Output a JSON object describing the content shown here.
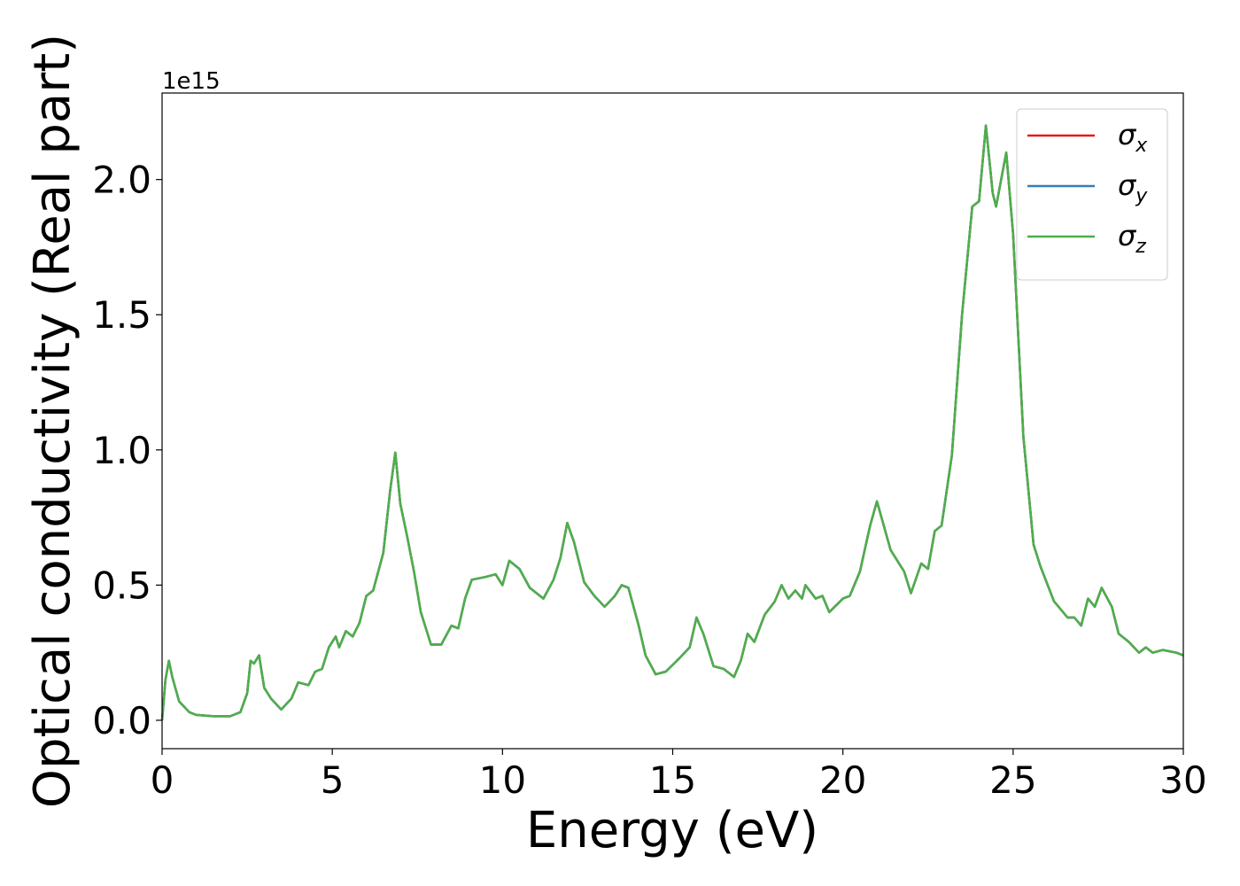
{
  "chart_data": {
    "type": "line",
    "xlabel": "Energy (eV)",
    "ylabel": "Optical conductivity (Real part)",
    "y_offset_label": "1e15",
    "x": [
      0,
      0.1,
      0.2,
      0.3,
      0.5,
      0.8,
      1.0,
      1.5,
      2.0,
      2.3,
      2.5,
      2.6,
      2.7,
      2.85,
      3.0,
      3.2,
      3.5,
      3.8,
      4.0,
      4.3,
      4.5,
      4.7,
      4.9,
      5.1,
      5.2,
      5.4,
      5.6,
      5.8,
      6.0,
      6.2,
      6.5,
      6.7,
      6.85,
      7.0,
      7.2,
      7.4,
      7.6,
      7.9,
      8.2,
      8.5,
      8.7,
      8.9,
      9.1,
      9.5,
      9.8,
      10.0,
      10.2,
      10.5,
      10.8,
      11.2,
      11.5,
      11.7,
      11.9,
      12.1,
      12.4,
      12.7,
      13.0,
      13.3,
      13.5,
      13.7,
      14.0,
      14.2,
      14.5,
      14.8,
      15.2,
      15.5,
      15.7,
      15.9,
      16.2,
      16.5,
      16.8,
      17.0,
      17.2,
      17.4,
      17.7,
      18.0,
      18.2,
      18.4,
      18.6,
      18.8,
      18.9,
      19.2,
      19.4,
      19.6,
      20.0,
      20.2,
      20.5,
      20.8,
      21.0,
      21.2,
      21.4,
      21.8,
      22.0,
      22.3,
      22.5,
      22.7,
      22.9,
      23.2,
      23.5,
      23.8,
      24.0,
      24.2,
      24.4,
      24.5,
      24.8,
      25.0,
      25.3,
      25.6,
      25.8,
      26.2,
      26.6,
      26.8,
      27.0,
      27.2,
      27.4,
      27.6,
      27.9,
      28.1,
      28.4,
      28.7,
      28.9,
      29.1,
      29.4,
      29.8,
      30.0
    ],
    "series": [
      {
        "name": "σx",
        "color": "#e41a1c",
        "values": [
          0.0,
          0.15,
          0.22,
          0.16,
          0.07,
          0.03,
          0.02,
          0.015,
          0.015,
          0.03,
          0.1,
          0.22,
          0.21,
          0.24,
          0.12,
          0.08,
          0.04,
          0.08,
          0.14,
          0.13,
          0.18,
          0.19,
          0.27,
          0.31,
          0.27,
          0.33,
          0.31,
          0.36,
          0.46,
          0.48,
          0.62,
          0.85,
          0.99,
          0.8,
          0.68,
          0.55,
          0.4,
          0.28,
          0.28,
          0.35,
          0.34,
          0.45,
          0.52,
          0.53,
          0.54,
          0.5,
          0.59,
          0.56,
          0.49,
          0.45,
          0.52,
          0.6,
          0.73,
          0.66,
          0.51,
          0.46,
          0.42,
          0.46,
          0.5,
          0.49,
          0.35,
          0.24,
          0.17,
          0.18,
          0.23,
          0.27,
          0.38,
          0.32,
          0.2,
          0.19,
          0.16,
          0.22,
          0.32,
          0.29,
          0.39,
          0.44,
          0.5,
          0.45,
          0.48,
          0.45,
          0.5,
          0.45,
          0.46,
          0.4,
          0.45,
          0.46,
          0.55,
          0.72,
          0.81,
          0.72,
          0.63,
          0.55,
          0.47,
          0.58,
          0.56,
          0.7,
          0.72,
          0.98,
          1.5,
          1.9,
          1.92,
          2.2,
          1.95,
          1.9,
          2.1,
          1.8,
          1.05,
          0.65,
          0.57,
          0.44,
          0.38,
          0.38,
          0.35,
          0.45,
          0.42,
          0.49,
          0.42,
          0.32,
          0.29,
          0.25,
          0.27,
          0.25,
          0.26,
          0.25,
          0.24
        ]
      },
      {
        "name": "σy",
        "color": "#377eb8",
        "values": [
          0.0,
          0.15,
          0.22,
          0.16,
          0.07,
          0.03,
          0.02,
          0.015,
          0.015,
          0.03,
          0.1,
          0.22,
          0.21,
          0.24,
          0.12,
          0.08,
          0.04,
          0.08,
          0.14,
          0.13,
          0.18,
          0.19,
          0.27,
          0.31,
          0.27,
          0.33,
          0.31,
          0.36,
          0.46,
          0.48,
          0.62,
          0.85,
          0.99,
          0.8,
          0.68,
          0.55,
          0.4,
          0.28,
          0.28,
          0.35,
          0.34,
          0.45,
          0.52,
          0.53,
          0.54,
          0.5,
          0.59,
          0.56,
          0.49,
          0.45,
          0.52,
          0.6,
          0.73,
          0.66,
          0.51,
          0.46,
          0.42,
          0.46,
          0.5,
          0.49,
          0.35,
          0.24,
          0.17,
          0.18,
          0.23,
          0.27,
          0.38,
          0.32,
          0.2,
          0.19,
          0.16,
          0.22,
          0.32,
          0.29,
          0.39,
          0.44,
          0.5,
          0.45,
          0.48,
          0.45,
          0.5,
          0.45,
          0.46,
          0.4,
          0.45,
          0.46,
          0.55,
          0.72,
          0.81,
          0.72,
          0.63,
          0.55,
          0.47,
          0.58,
          0.56,
          0.7,
          0.72,
          0.98,
          1.5,
          1.9,
          1.92,
          2.2,
          1.95,
          1.9,
          2.1,
          1.8,
          1.05,
          0.65,
          0.57,
          0.44,
          0.38,
          0.38,
          0.35,
          0.45,
          0.42,
          0.49,
          0.42,
          0.32,
          0.29,
          0.25,
          0.27,
          0.25,
          0.26,
          0.25,
          0.24
        ]
      },
      {
        "name": "σz",
        "color": "#4daf4a",
        "values": [
          0.0,
          0.15,
          0.22,
          0.16,
          0.07,
          0.03,
          0.02,
          0.015,
          0.015,
          0.03,
          0.1,
          0.22,
          0.21,
          0.24,
          0.12,
          0.08,
          0.04,
          0.08,
          0.14,
          0.13,
          0.18,
          0.19,
          0.27,
          0.31,
          0.27,
          0.33,
          0.31,
          0.36,
          0.46,
          0.48,
          0.62,
          0.85,
          0.99,
          0.8,
          0.68,
          0.55,
          0.4,
          0.28,
          0.28,
          0.35,
          0.34,
          0.45,
          0.52,
          0.53,
          0.54,
          0.5,
          0.59,
          0.56,
          0.49,
          0.45,
          0.52,
          0.6,
          0.73,
          0.66,
          0.51,
          0.46,
          0.42,
          0.46,
          0.5,
          0.49,
          0.35,
          0.24,
          0.17,
          0.18,
          0.23,
          0.27,
          0.38,
          0.32,
          0.2,
          0.19,
          0.16,
          0.22,
          0.32,
          0.29,
          0.39,
          0.44,
          0.5,
          0.45,
          0.48,
          0.45,
          0.5,
          0.45,
          0.46,
          0.4,
          0.45,
          0.46,
          0.55,
          0.72,
          0.81,
          0.72,
          0.63,
          0.55,
          0.47,
          0.58,
          0.56,
          0.7,
          0.72,
          0.98,
          1.5,
          1.9,
          1.92,
          2.2,
          1.95,
          1.9,
          2.1,
          1.8,
          1.05,
          0.65,
          0.57,
          0.44,
          0.38,
          0.38,
          0.35,
          0.45,
          0.42,
          0.49,
          0.42,
          0.32,
          0.29,
          0.25,
          0.27,
          0.25,
          0.26,
          0.25,
          0.24
        ]
      }
    ],
    "xlim": [
      0,
      30
    ],
    "xticks": [
      0,
      5,
      10,
      15,
      20,
      25,
      30
    ],
    "ylim": [
      -0.105,
      2.32
    ],
    "yticks": [
      {
        "value": 0,
        "label": "0.0"
      },
      {
        "value": 0.5,
        "label": "0.5"
      },
      {
        "value": 1,
        "label": "1.0"
      },
      {
        "value": 1.5,
        "label": "1.5"
      },
      {
        "value": 2,
        "label": "2.0"
      }
    ],
    "grid": false,
    "legend": "upper right"
  }
}
